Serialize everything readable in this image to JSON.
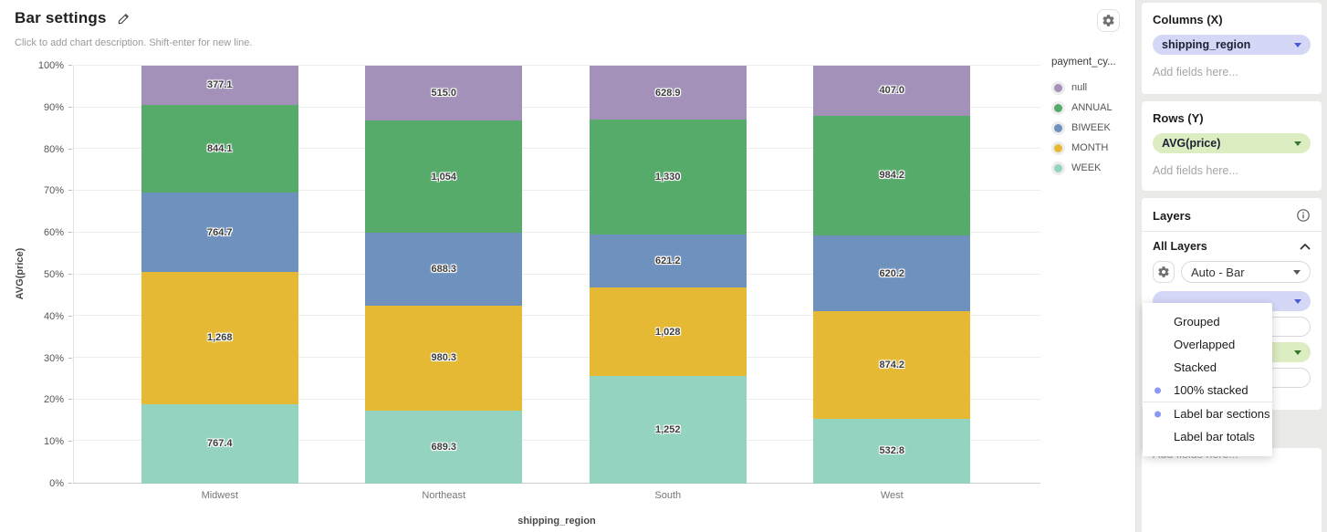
{
  "header": {
    "title": "Bar settings",
    "description_placeholder": "Click to add chart description. Shift-enter for new line."
  },
  "chart_data": {
    "type": "bar",
    "mode": "100% stacked",
    "xlabel": "shipping_region",
    "ylabel": "AVG(price)",
    "categories": [
      "Midwest",
      "Northeast",
      "South",
      "West"
    ],
    "series": [
      {
        "name": "null",
        "color": "#a391ba",
        "values": [
          377.1,
          515.0,
          628.9,
          407.0
        ],
        "labels": [
          "377.1",
          "515.0",
          "628.9",
          "407.0"
        ]
      },
      {
        "name": "ANNUAL",
        "color": "#56ab6a",
        "values": [
          844.1,
          1054,
          1330,
          984.2
        ],
        "labels": [
          "844.1",
          "1,054",
          "1,330",
          "984.2"
        ]
      },
      {
        "name": "BIWEEK",
        "color": "#6e91bd",
        "values": [
          764.7,
          688.3,
          621.2,
          620.2
        ],
        "labels": [
          "764.7",
          "688.3",
          "621.2",
          "620.2"
        ]
      },
      {
        "name": "MONTH",
        "color": "#e5b933",
        "values": [
          1268,
          980.3,
          1028,
          874.2
        ],
        "labels": [
          "1,268",
          "980.3",
          "1,028",
          "874.2"
        ]
      },
      {
        "name": "WEEK",
        "color": "#94d3c0",
        "values": [
          767.4,
          689.3,
          1252,
          532.8
        ],
        "labels": [
          "767.4",
          "689.3",
          "1,252",
          "532.8"
        ]
      }
    ],
    "stack_order_bottom_to_top": [
      "WEEK",
      "MONTH",
      "BIWEEK",
      "ANNUAL",
      "null"
    ],
    "y_ticks": [
      "0%",
      "10%",
      "20%",
      "30%",
      "40%",
      "50%",
      "60%",
      "70%",
      "80%",
      "90%",
      "100%"
    ],
    "ylim": [
      "0%",
      "100%"
    ],
    "grid": true,
    "legend": {
      "title": "payment_cy...",
      "position": "right"
    }
  },
  "panel": {
    "columns": {
      "title": "Columns (X)",
      "field": "shipping_region",
      "placeholder": "Add fields here..."
    },
    "rows": {
      "title": "Rows (Y)",
      "field": "AVG(price)",
      "placeholder": "Add fields here..."
    },
    "layers": {
      "title": "Layers",
      "group_title": "All Layers",
      "layer_type_value": "Auto - Bar"
    },
    "bottom": {
      "placeholder": "Add fields here..."
    }
  },
  "menu": {
    "mode_items": [
      {
        "label": "Grouped",
        "selected": false
      },
      {
        "label": "Overlapped",
        "selected": false
      },
      {
        "label": "Stacked",
        "selected": false
      },
      {
        "label": "100% stacked",
        "selected": true
      }
    ],
    "label_items": [
      {
        "label": "Label bar sections",
        "selected": true
      },
      {
        "label": "Label bar totals",
        "selected": false
      }
    ]
  },
  "colors": {
    "x_pill_bg": "#d4d8f6",
    "x_pill_accent": "#4a5ad4",
    "y_pill_bg": "#dcedc2",
    "y_pill_accent": "#39762d",
    "menu_bullet": "#8a97f5",
    "panel_bg": "#eaeae8"
  }
}
